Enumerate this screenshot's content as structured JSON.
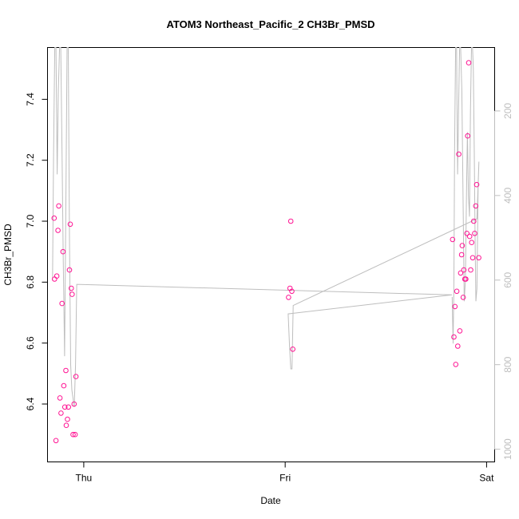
{
  "chart_data": {
    "type": "scatter",
    "title": "ATOM3 Northeast_Pacific_2 CH3Br_PMSD",
    "xlabel": "Date",
    "ylabel": "CH3Br_PMSD",
    "x_ticks": [
      "Thu",
      "Fri",
      "Sat"
    ],
    "x_tick_days": [
      1,
      2,
      3
    ],
    "xlim": [
      0.82,
      3.04
    ],
    "ylim": [
      6.21,
      7.57
    ],
    "y_ticks": [
      6.4,
      6.6,
      6.8,
      7.0,
      7.2,
      7.4
    ],
    "y2_ticks": [
      200,
      400,
      600,
      800,
      1000
    ],
    "y2lim": [
      1030,
      50
    ],
    "grid": false,
    "point_color": "#ff1493",
    "line_color": "#bebebe",
    "series": [
      {
        "values": [
          {
            "x": 0.853,
            "y": 7.01
          },
          {
            "x": 0.855,
            "y": 6.81
          },
          {
            "x": 0.862,
            "y": 6.28
          },
          {
            "x": 0.866,
            "y": 6.82
          },
          {
            "x": 0.872,
            "y": 6.97
          },
          {
            "x": 0.876,
            "y": 7.05
          },
          {
            "x": 0.882,
            "y": 6.42
          },
          {
            "x": 0.887,
            "y": 6.37
          },
          {
            "x": 0.892,
            "y": 6.73
          },
          {
            "x": 0.897,
            "y": 6.9
          },
          {
            "x": 0.901,
            "y": 6.46
          },
          {
            "x": 0.906,
            "y": 6.39
          },
          {
            "x": 0.911,
            "y": 6.51
          },
          {
            "x": 0.913,
            "y": 6.33
          },
          {
            "x": 0.919,
            "y": 6.35
          },
          {
            "x": 0.924,
            "y": 6.39
          },
          {
            "x": 0.929,
            "y": 6.84
          },
          {
            "x": 0.933,
            "y": 6.99
          },
          {
            "x": 0.938,
            "y": 6.78
          },
          {
            "x": 0.942,
            "y": 6.76
          },
          {
            "x": 0.947,
            "y": 6.3
          },
          {
            "x": 0.952,
            "y": 6.4
          },
          {
            "x": 0.957,
            "y": 6.3
          },
          {
            "x": 0.961,
            "y": 6.49
          },
          {
            "x": 2.017,
            "y": 6.75
          },
          {
            "x": 2.024,
            "y": 6.78
          },
          {
            "x": 2.028,
            "y": 7.0
          },
          {
            "x": 2.033,
            "y": 6.77
          },
          {
            "x": 2.038,
            "y": 6.58
          },
          {
            "x": 2.831,
            "y": 6.94
          },
          {
            "x": 2.838,
            "y": 6.62
          },
          {
            "x": 2.843,
            "y": 6.72
          },
          {
            "x": 2.847,
            "y": 6.53
          },
          {
            "x": 2.852,
            "y": 6.77
          },
          {
            "x": 2.857,
            "y": 6.59
          },
          {
            "x": 2.862,
            "y": 7.22
          },
          {
            "x": 2.867,
            "y": 6.64
          },
          {
            "x": 2.871,
            "y": 6.83
          },
          {
            "x": 2.876,
            "y": 6.89
          },
          {
            "x": 2.879,
            "y": 6.92
          },
          {
            "x": 2.884,
            "y": 6.75
          },
          {
            "x": 2.887,
            "y": 6.84
          },
          {
            "x": 2.892,
            "y": 6.81
          },
          {
            "x": 2.897,
            "y": 6.81
          },
          {
            "x": 2.902,
            "y": 6.96
          },
          {
            "x": 2.906,
            "y": 7.28
          },
          {
            "x": 2.911,
            "y": 7.52
          },
          {
            "x": 2.916,
            "y": 6.95
          },
          {
            "x": 2.921,
            "y": 6.84
          },
          {
            "x": 2.926,
            "y": 6.93
          },
          {
            "x": 2.931,
            "y": 6.88
          },
          {
            "x": 2.936,
            "y": 7.0
          },
          {
            "x": 2.941,
            "y": 6.96
          },
          {
            "x": 2.946,
            "y": 7.05
          },
          {
            "x": 2.951,
            "y": 7.12
          },
          {
            "x": 2.961,
            "y": 6.88
          }
        ]
      },
      {
        "axis": "right",
        "values": [
          {
            "x": 0.845,
            "y": 600
          },
          {
            "x": 0.85,
            "y": 300
          },
          {
            "x": 0.856,
            "y": 50
          },
          {
            "x": 0.862,
            "y": 50
          },
          {
            "x": 0.868,
            "y": 350
          },
          {
            "x": 0.874,
            "y": 150
          },
          {
            "x": 0.88,
            "y": 50
          },
          {
            "x": 0.886,
            "y": 50
          },
          {
            "x": 0.892,
            "y": 300
          },
          {
            "x": 0.898,
            "y": 550
          },
          {
            "x": 0.905,
            "y": 780
          },
          {
            "x": 0.911,
            "y": 420
          },
          {
            "x": 0.917,
            "y": 50
          },
          {
            "x": 0.923,
            "y": 50
          },
          {
            "x": 0.929,
            "y": 500
          },
          {
            "x": 0.935,
            "y": 800
          },
          {
            "x": 0.941,
            "y": 860
          },
          {
            "x": 0.947,
            "y": 880
          },
          {
            "x": 0.953,
            "y": 900
          },
          {
            "x": 0.959,
            "y": 800
          },
          {
            "x": 0.965,
            "y": 610
          },
          {
            "x": 2.828,
            "y": 635
          },
          {
            "x": 2.015,
            "y": 680
          },
          {
            "x": 2.022,
            "y": 760
          },
          {
            "x": 2.028,
            "y": 810
          },
          {
            "x": 2.034,
            "y": 810
          },
          {
            "x": 2.04,
            "y": 660
          },
          {
            "x": 2.952,
            "y": 455
          },
          {
            "x": 2.962,
            "y": 320
          },
          {
            "x": 2.958,
            "y": 380
          },
          {
            "x": 2.952,
            "y": 620
          },
          {
            "x": 2.947,
            "y": 650
          },
          {
            "x": 2.943,
            "y": 500
          },
          {
            "x": 2.939,
            "y": 300
          },
          {
            "x": 2.934,
            "y": 100
          },
          {
            "x": 2.93,
            "y": 50
          },
          {
            "x": 2.925,
            "y": 50
          },
          {
            "x": 2.92,
            "y": 200
          },
          {
            "x": 2.915,
            "y": 450
          },
          {
            "x": 2.91,
            "y": 400
          },
          {
            "x": 2.905,
            "y": 250
          },
          {
            "x": 2.9,
            "y": 400
          },
          {
            "x": 2.895,
            "y": 600
          },
          {
            "x": 2.889,
            "y": 650
          },
          {
            "x": 2.883,
            "y": 400
          },
          {
            "x": 2.877,
            "y": 150
          },
          {
            "x": 2.871,
            "y": 50
          },
          {
            "x": 2.866,
            "y": 50
          },
          {
            "x": 2.861,
            "y": 200
          },
          {
            "x": 2.856,
            "y": 350
          },
          {
            "x": 2.851,
            "y": 50
          },
          {
            "x": 2.846,
            "y": 50
          },
          {
            "x": 2.841,
            "y": 300
          },
          {
            "x": 2.838,
            "y": 600
          },
          {
            "x": 2.834,
            "y": 750
          },
          {
            "x": 2.831,
            "y": 690
          },
          {
            "x": 2.829,
            "y": 640
          }
        ]
      }
    ]
  }
}
